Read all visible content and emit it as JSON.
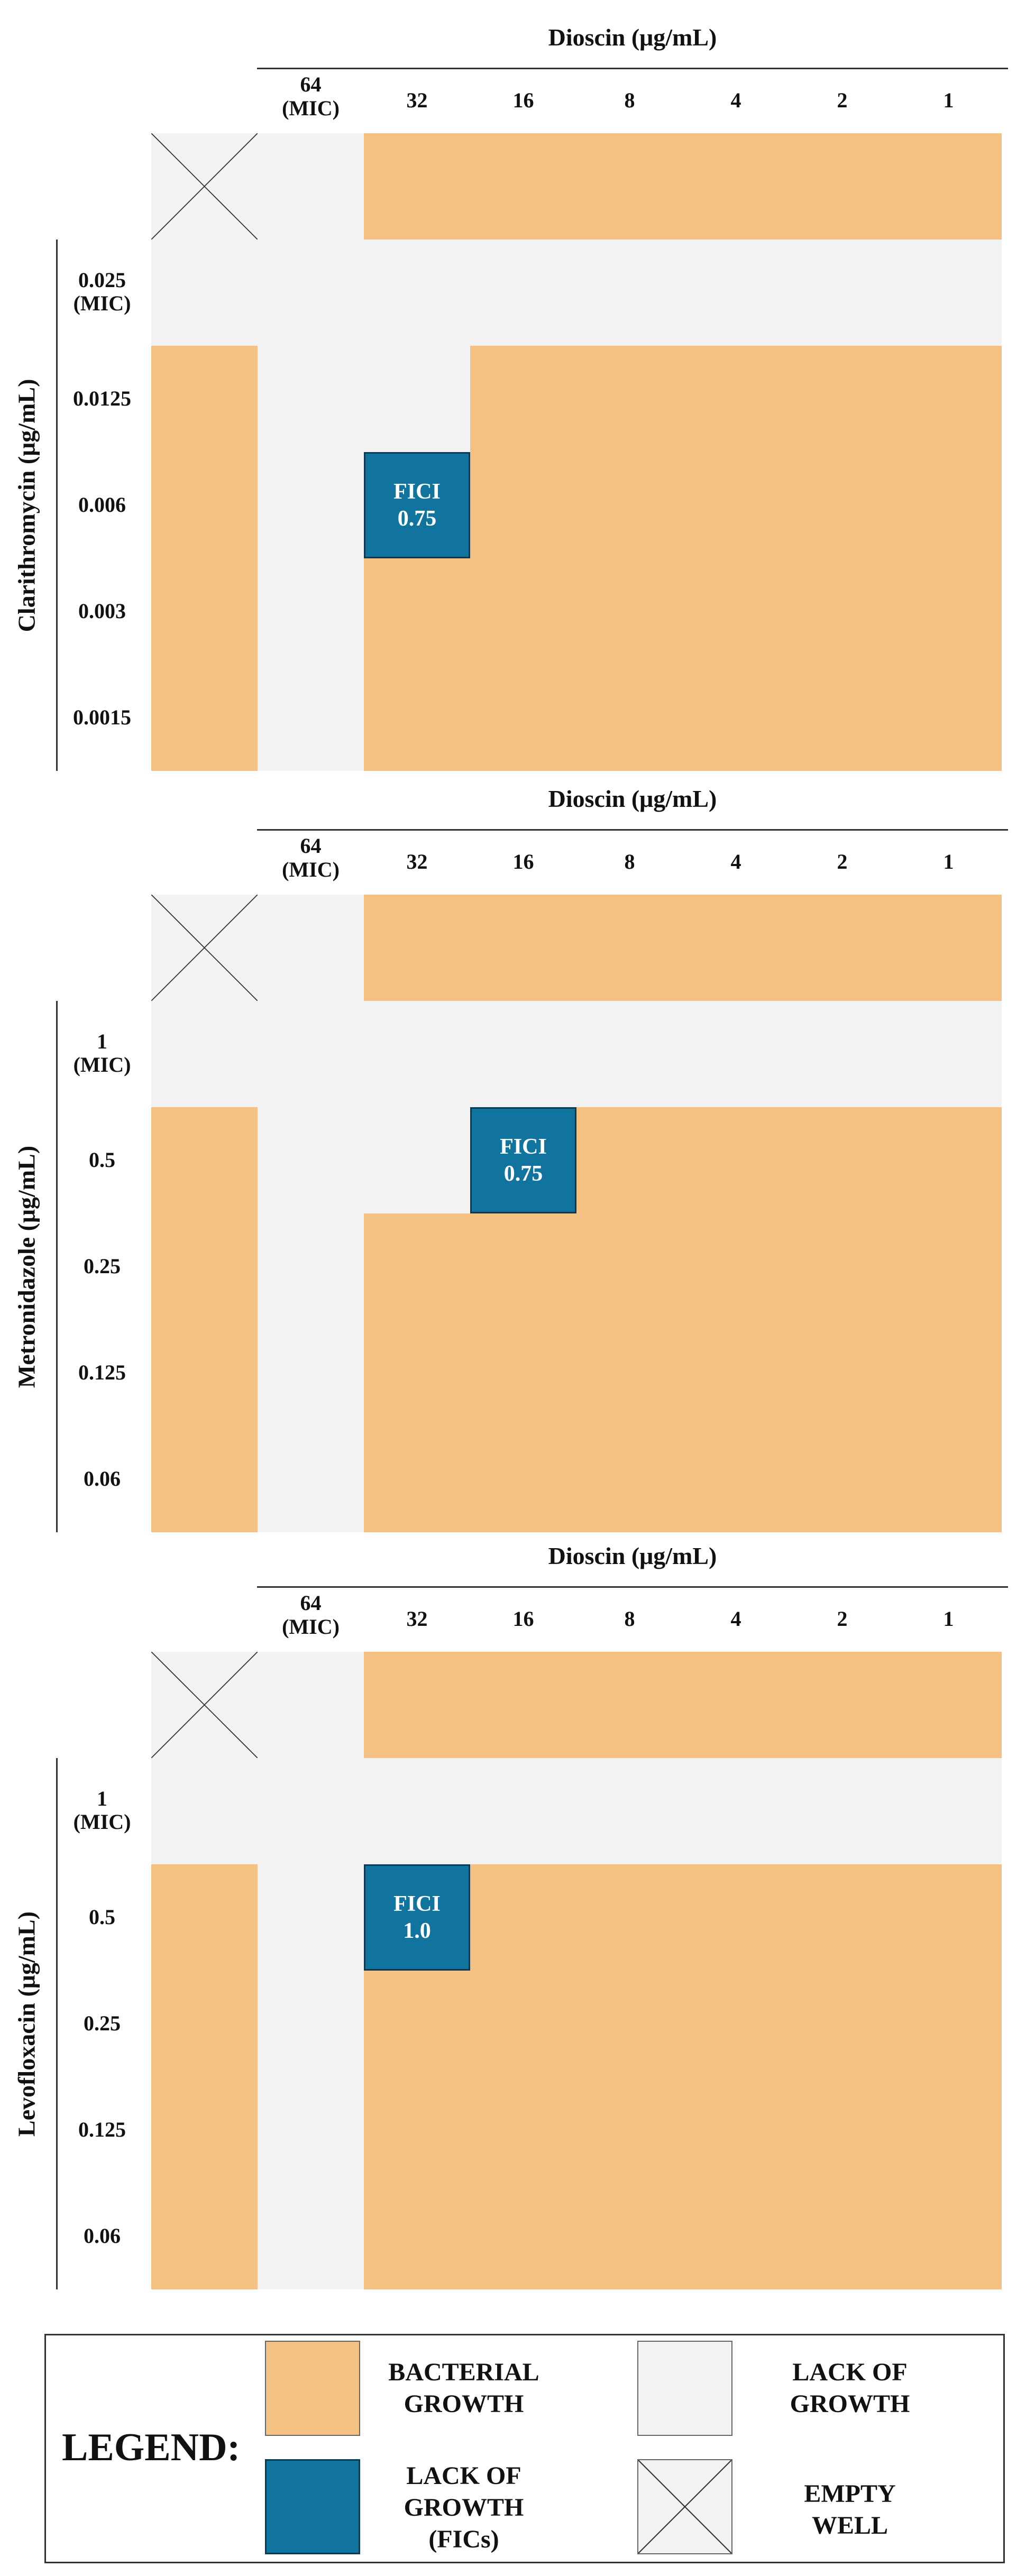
{
  "colors": {
    "growth": "#f5c183",
    "no_growth": "#f2f2f2",
    "fic": "#10749e",
    "empty_line": "#333333"
  },
  "chart_data": [
    {
      "type": "heatmap",
      "x_title": "Dioscin (μg/mL)",
      "y_title": "Clarithromycin (μg/mL)",
      "columns": [
        "64\n(MIC)",
        "32",
        "16",
        "8",
        "4",
        "2",
        "1"
      ],
      "rows": [
        "",
        "0.025\n(MIC)",
        "0.0125",
        "0.006",
        "0.003",
        "0.0015"
      ],
      "grid": [
        [
          "E",
          "N",
          "G",
          "G",
          "G",
          "G",
          "G",
          "G"
        ],
        [
          "N",
          "N",
          "N",
          "N",
          "N",
          "N",
          "N",
          "N"
        ],
        [
          "G",
          "N",
          "N",
          "G",
          "G",
          "G",
          "G",
          "G"
        ],
        [
          "G",
          "N",
          "F",
          "G",
          "G",
          "G",
          "G",
          "G"
        ],
        [
          "G",
          "N",
          "G",
          "G",
          "G",
          "G",
          "G",
          "G"
        ],
        [
          "G",
          "N",
          "G",
          "G",
          "G",
          "G",
          "G",
          "G"
        ]
      ],
      "fici": {
        "row": 3,
        "col": 2,
        "label": "FICI",
        "value": "0.75"
      }
    },
    {
      "type": "heatmap",
      "x_title": "Dioscin (μg/mL)",
      "y_title": "Metronidazole (μg/mL)",
      "columns": [
        "64\n(MIC)",
        "32",
        "16",
        "8",
        "4",
        "2",
        "1"
      ],
      "rows": [
        "",
        "1\n(MIC)",
        "0.5",
        "0.25",
        "0.125",
        "0.06"
      ],
      "grid": [
        [
          "E",
          "N",
          "G",
          "G",
          "G",
          "G",
          "G",
          "G"
        ],
        [
          "N",
          "N",
          "N",
          "N",
          "N",
          "N",
          "N",
          "N"
        ],
        [
          "G",
          "N",
          "N",
          "F",
          "G",
          "G",
          "G",
          "G"
        ],
        [
          "G",
          "N",
          "G",
          "G",
          "G",
          "G",
          "G",
          "G"
        ],
        [
          "G",
          "N",
          "G",
          "G",
          "G",
          "G",
          "G",
          "G"
        ],
        [
          "G",
          "N",
          "G",
          "G",
          "G",
          "G",
          "G",
          "G"
        ]
      ],
      "fici": {
        "row": 2,
        "col": 3,
        "label": "FICI",
        "value": "0.75"
      }
    },
    {
      "type": "heatmap",
      "x_title": "Dioscin (μg/mL)",
      "y_title": "Levofloxacin (μg/mL)",
      "columns": [
        "64\n(MIC)",
        "32",
        "16",
        "8",
        "4",
        "2",
        "1"
      ],
      "rows": [
        "",
        "1\n(MIC)",
        "0.5",
        "0.25",
        "0.125",
        "0.06"
      ],
      "grid": [
        [
          "E",
          "N",
          "G",
          "G",
          "G",
          "G",
          "G",
          "G"
        ],
        [
          "N",
          "N",
          "N",
          "N",
          "N",
          "N",
          "N",
          "N"
        ],
        [
          "G",
          "N",
          "F",
          "G",
          "G",
          "G",
          "G",
          "G"
        ],
        [
          "G",
          "N",
          "G",
          "G",
          "G",
          "G",
          "G",
          "G"
        ],
        [
          "G",
          "N",
          "G",
          "G",
          "G",
          "G",
          "G",
          "G"
        ],
        [
          "G",
          "N",
          "G",
          "G",
          "G",
          "G",
          "G",
          "G"
        ]
      ],
      "fici": {
        "row": 2,
        "col": 2,
        "label": "FICI",
        "value": "1.0"
      }
    }
  ],
  "legend": {
    "title": "LEGEND:",
    "items": [
      {
        "key": "G",
        "label": "BACTERIAL\nGROWTH"
      },
      {
        "key": "N",
        "label": "LACK OF\nGROWTH"
      },
      {
        "key": "F",
        "label": "LACK OF\nGROWTH\n(FICs)"
      },
      {
        "key": "E",
        "label": "EMPTY\nWELL"
      }
    ]
  }
}
